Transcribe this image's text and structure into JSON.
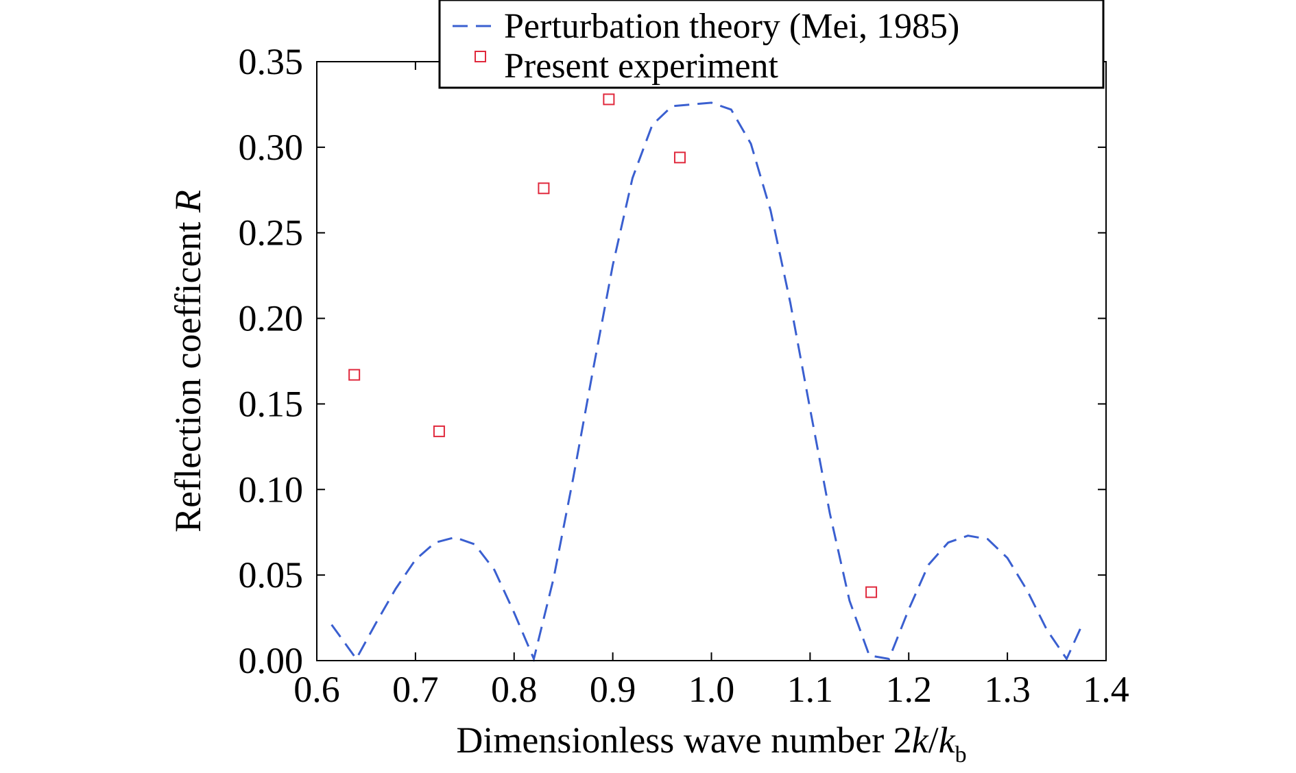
{
  "chart_data": {
    "type": "line",
    "xlabel": {
      "text": "Dimensionless wave number 2",
      "italic1": "k",
      "slash": "/",
      "italic2": "k",
      "sub": "b"
    },
    "ylabel": {
      "text": "Reflection coefficent ",
      "italic": "R"
    },
    "xlim": [
      0.6,
      1.4
    ],
    "ylim": [
      0.0,
      0.35
    ],
    "x_ticks": [
      0.6,
      0.7,
      0.8,
      0.9,
      1.0,
      1.1,
      1.2,
      1.3,
      1.4
    ],
    "x_tick_labels": [
      "0.6",
      "0.7",
      "0.8",
      "0.9",
      "1.0",
      "1.1",
      "1.2",
      "1.3",
      "1.4"
    ],
    "y_ticks": [
      0.0,
      0.05,
      0.1,
      0.15,
      0.2,
      0.25,
      0.3,
      0.35
    ],
    "y_tick_labels": [
      "0.00",
      "0.05",
      "0.10",
      "0.15",
      "0.20",
      "0.25",
      "0.30",
      "0.35"
    ],
    "grid": false,
    "legend_position": "top-right",
    "series": [
      {
        "name": "Perturbation theory (Mei, 1985)",
        "style": "dashed-line",
        "color": "#3a5fd0",
        "x": [
          0.615,
          0.625,
          0.64,
          0.66,
          0.68,
          0.7,
          0.72,
          0.74,
          0.76,
          0.78,
          0.8,
          0.82,
          0.84,
          0.86,
          0.88,
          0.9,
          0.92,
          0.94,
          0.96,
          0.98,
          1.0,
          1.02,
          1.04,
          1.06,
          1.08,
          1.1,
          1.12,
          1.14,
          1.16,
          1.18,
          1.2,
          1.22,
          1.24,
          1.26,
          1.28,
          1.3,
          1.32,
          1.34,
          1.36,
          1.375
        ],
        "y": [
          0.021,
          0.013,
          0.001,
          0.022,
          0.042,
          0.059,
          0.069,
          0.072,
          0.068,
          0.053,
          0.028,
          0.001,
          0.048,
          0.107,
          0.17,
          0.231,
          0.282,
          0.313,
          0.324,
          0.325,
          0.326,
          0.322,
          0.302,
          0.263,
          0.209,
          0.147,
          0.086,
          0.035,
          0.003,
          0.001,
          0.03,
          0.056,
          0.069,
          0.073,
          0.071,
          0.06,
          0.041,
          0.018,
          0.001,
          0.02
        ]
      },
      {
        "name": "Present experiment",
        "style": "square-markers",
        "color": "#e0283c",
        "x": [
          0.638,
          0.724,
          0.83,
          0.896,
          0.968,
          1.162
        ],
        "y": [
          0.167,
          0.134,
          0.276,
          0.328,
          0.294,
          0.04
        ]
      }
    ]
  }
}
